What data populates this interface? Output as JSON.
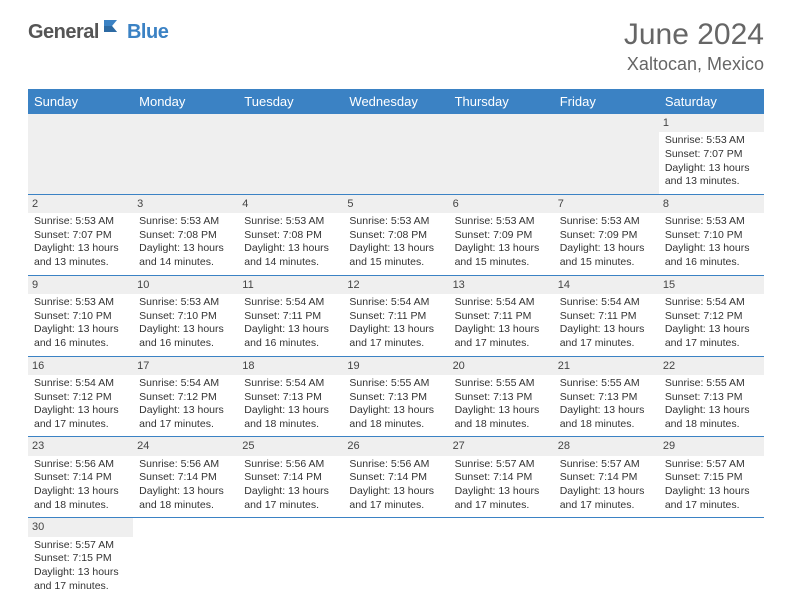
{
  "logo": {
    "general": "General",
    "blue": "Blue"
  },
  "title": "June 2024",
  "location": "Xaltocan, Mexico",
  "header_bg": "#3b82c4",
  "days": [
    "Sunday",
    "Monday",
    "Tuesday",
    "Wednesday",
    "Thursday",
    "Friday",
    "Saturday"
  ],
  "weeks": [
    [
      null,
      null,
      null,
      null,
      null,
      null,
      {
        "n": "1",
        "sr": "Sunrise: 5:53 AM",
        "ss": "Sunset: 7:07 PM",
        "dl": "Daylight: 13 hours and 13 minutes."
      }
    ],
    [
      {
        "n": "2",
        "sr": "Sunrise: 5:53 AM",
        "ss": "Sunset: 7:07 PM",
        "dl": "Daylight: 13 hours and 13 minutes."
      },
      {
        "n": "3",
        "sr": "Sunrise: 5:53 AM",
        "ss": "Sunset: 7:08 PM",
        "dl": "Daylight: 13 hours and 14 minutes."
      },
      {
        "n": "4",
        "sr": "Sunrise: 5:53 AM",
        "ss": "Sunset: 7:08 PM",
        "dl": "Daylight: 13 hours and 14 minutes."
      },
      {
        "n": "5",
        "sr": "Sunrise: 5:53 AM",
        "ss": "Sunset: 7:08 PM",
        "dl": "Daylight: 13 hours and 15 minutes."
      },
      {
        "n": "6",
        "sr": "Sunrise: 5:53 AM",
        "ss": "Sunset: 7:09 PM",
        "dl": "Daylight: 13 hours and 15 minutes."
      },
      {
        "n": "7",
        "sr": "Sunrise: 5:53 AM",
        "ss": "Sunset: 7:09 PM",
        "dl": "Daylight: 13 hours and 15 minutes."
      },
      {
        "n": "8",
        "sr": "Sunrise: 5:53 AM",
        "ss": "Sunset: 7:10 PM",
        "dl": "Daylight: 13 hours and 16 minutes."
      }
    ],
    [
      {
        "n": "9",
        "sr": "Sunrise: 5:53 AM",
        "ss": "Sunset: 7:10 PM",
        "dl": "Daylight: 13 hours and 16 minutes."
      },
      {
        "n": "10",
        "sr": "Sunrise: 5:53 AM",
        "ss": "Sunset: 7:10 PM",
        "dl": "Daylight: 13 hours and 16 minutes."
      },
      {
        "n": "11",
        "sr": "Sunrise: 5:54 AM",
        "ss": "Sunset: 7:11 PM",
        "dl": "Daylight: 13 hours and 16 minutes."
      },
      {
        "n": "12",
        "sr": "Sunrise: 5:54 AM",
        "ss": "Sunset: 7:11 PM",
        "dl": "Daylight: 13 hours and 17 minutes."
      },
      {
        "n": "13",
        "sr": "Sunrise: 5:54 AM",
        "ss": "Sunset: 7:11 PM",
        "dl": "Daylight: 13 hours and 17 minutes."
      },
      {
        "n": "14",
        "sr": "Sunrise: 5:54 AM",
        "ss": "Sunset: 7:11 PM",
        "dl": "Daylight: 13 hours and 17 minutes."
      },
      {
        "n": "15",
        "sr": "Sunrise: 5:54 AM",
        "ss": "Sunset: 7:12 PM",
        "dl": "Daylight: 13 hours and 17 minutes."
      }
    ],
    [
      {
        "n": "16",
        "sr": "Sunrise: 5:54 AM",
        "ss": "Sunset: 7:12 PM",
        "dl": "Daylight: 13 hours and 17 minutes."
      },
      {
        "n": "17",
        "sr": "Sunrise: 5:54 AM",
        "ss": "Sunset: 7:12 PM",
        "dl": "Daylight: 13 hours and 17 minutes."
      },
      {
        "n": "18",
        "sr": "Sunrise: 5:54 AM",
        "ss": "Sunset: 7:13 PM",
        "dl": "Daylight: 13 hours and 18 minutes."
      },
      {
        "n": "19",
        "sr": "Sunrise: 5:55 AM",
        "ss": "Sunset: 7:13 PM",
        "dl": "Daylight: 13 hours and 18 minutes."
      },
      {
        "n": "20",
        "sr": "Sunrise: 5:55 AM",
        "ss": "Sunset: 7:13 PM",
        "dl": "Daylight: 13 hours and 18 minutes."
      },
      {
        "n": "21",
        "sr": "Sunrise: 5:55 AM",
        "ss": "Sunset: 7:13 PM",
        "dl": "Daylight: 13 hours and 18 minutes."
      },
      {
        "n": "22",
        "sr": "Sunrise: 5:55 AM",
        "ss": "Sunset: 7:13 PM",
        "dl": "Daylight: 13 hours and 18 minutes."
      }
    ],
    [
      {
        "n": "23",
        "sr": "Sunrise: 5:56 AM",
        "ss": "Sunset: 7:14 PM",
        "dl": "Daylight: 13 hours and 18 minutes."
      },
      {
        "n": "24",
        "sr": "Sunrise: 5:56 AM",
        "ss": "Sunset: 7:14 PM",
        "dl": "Daylight: 13 hours and 18 minutes."
      },
      {
        "n": "25",
        "sr": "Sunrise: 5:56 AM",
        "ss": "Sunset: 7:14 PM",
        "dl": "Daylight: 13 hours and 17 minutes."
      },
      {
        "n": "26",
        "sr": "Sunrise: 5:56 AM",
        "ss": "Sunset: 7:14 PM",
        "dl": "Daylight: 13 hours and 17 minutes."
      },
      {
        "n": "27",
        "sr": "Sunrise: 5:57 AM",
        "ss": "Sunset: 7:14 PM",
        "dl": "Daylight: 13 hours and 17 minutes."
      },
      {
        "n": "28",
        "sr": "Sunrise: 5:57 AM",
        "ss": "Sunset: 7:14 PM",
        "dl": "Daylight: 13 hours and 17 minutes."
      },
      {
        "n": "29",
        "sr": "Sunrise: 5:57 AM",
        "ss": "Sunset: 7:15 PM",
        "dl": "Daylight: 13 hours and 17 minutes."
      }
    ],
    [
      {
        "n": "30",
        "sr": "Sunrise: 5:57 AM",
        "ss": "Sunset: 7:15 PM",
        "dl": "Daylight: 13 hours and 17 minutes."
      },
      null,
      null,
      null,
      null,
      null,
      null
    ]
  ]
}
